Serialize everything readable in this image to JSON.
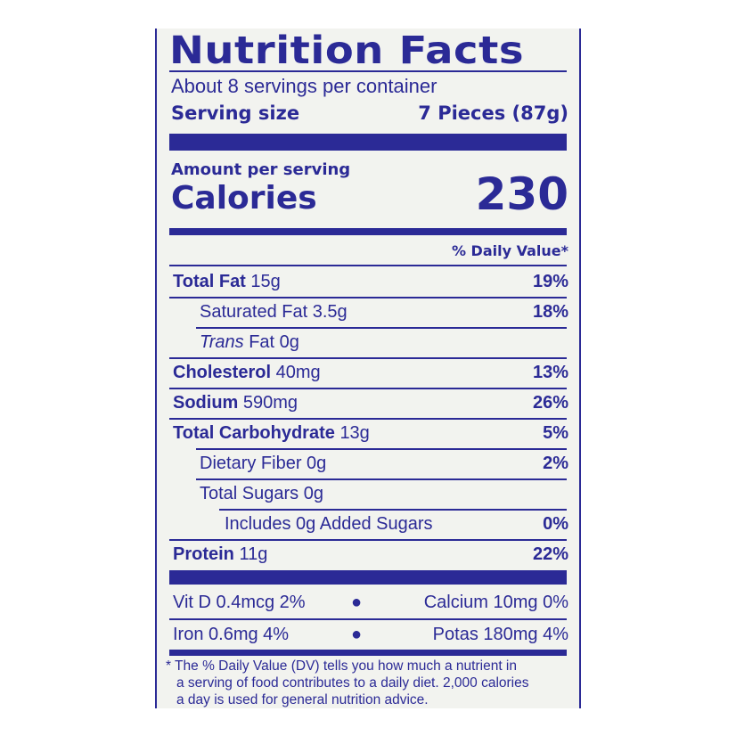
{
  "label": {
    "title": "Nutrition Facts",
    "servings_per_container": "About 8 servings per container",
    "serving_size_label": "Serving size",
    "serving_size_value": "7 Pieces (87g)",
    "amount_per_serving": "Amount per serving",
    "calories_label": "Calories",
    "calories_value": "230",
    "daily_value_header": "% Daily Value*",
    "nutrients": [
      {
        "name": "Total Fat",
        "amount": "15g",
        "dv": "19%"
      },
      {
        "name": "Saturated Fat",
        "amount": "3.5g",
        "dv": "18%"
      },
      {
        "name": "Trans",
        "name_suffix": "Fat",
        "amount": "0g",
        "dv": ""
      },
      {
        "name": "Cholesterol",
        "amount": "40mg",
        "dv": "13%"
      },
      {
        "name": "Sodium",
        "amount": "590mg",
        "dv": "26%"
      },
      {
        "name": "Total Carbohydrate",
        "amount": "13g",
        "dv": "5%"
      },
      {
        "name": "Dietary Fiber",
        "amount": "0g",
        "dv": "2%"
      },
      {
        "name": "Total Sugars",
        "amount": "0g",
        "dv": ""
      },
      {
        "name": "Includes 0g Added Sugars",
        "amount": "",
        "dv": "0%"
      },
      {
        "name": "Protein",
        "amount": "11g",
        "dv": "22%"
      }
    ],
    "vitamins": {
      "vit_d": "Vit D 0.4mcg 2%",
      "calcium": "Calcium 10mg 0%",
      "iron": "Iron 0.6mg 4%",
      "potassium": "Potas 180mg 4%"
    },
    "footnote": [
      "* The % Daily Value (DV) tells you how much a nutrient in",
      "a serving of food contributes to a daily diet. 2,000 calories",
      "a day is used for general nutrition advice."
    ],
    "ink_color": "#2b2a96"
  }
}
